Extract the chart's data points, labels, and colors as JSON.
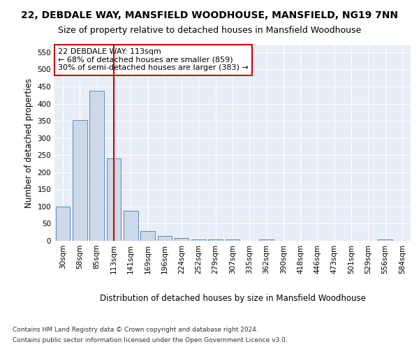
{
  "title": "22, DEBDALE WAY, MANSFIELD WOODHOUSE, MANSFIELD, NG19 7NN",
  "subtitle": "Size of property relative to detached houses in Mansfield Woodhouse",
  "xlabel": "Distribution of detached houses by size in Mansfield Woodhouse",
  "ylabel": "Number of detached properties",
  "footnote1": "Contains HM Land Registry data © Crown copyright and database right 2024.",
  "footnote2": "Contains public sector information licensed under the Open Government Licence v3.0.",
  "annotation_line1": "22 DEBDALE WAY: 113sqm",
  "annotation_line2": "← 68% of detached houses are smaller (859)",
  "annotation_line3": "30% of semi-detached houses are larger (383) →",
  "bar_color": "#cdd9e8",
  "bar_edge_color": "#5b8db8",
  "marker_line_color": "#cc0000",
  "categories": [
    "30sqm",
    "58sqm",
    "85sqm",
    "113sqm",
    "141sqm",
    "169sqm",
    "196sqm",
    "224sqm",
    "252sqm",
    "279sqm",
    "307sqm",
    "335sqm",
    "362sqm",
    "390sqm",
    "418sqm",
    "446sqm",
    "473sqm",
    "501sqm",
    "529sqm",
    "556sqm",
    "584sqm"
  ],
  "values": [
    100,
    353,
    438,
    240,
    87,
    29,
    14,
    9,
    5,
    5,
    5,
    0,
    5,
    0,
    0,
    0,
    0,
    0,
    0,
    5,
    0
  ],
  "ylim": [
    0,
    570
  ],
  "yticks": [
    0,
    50,
    100,
    150,
    200,
    250,
    300,
    350,
    400,
    450,
    500,
    550
  ],
  "plot_bg_color": "#e8eef8",
  "title_fontsize": 10,
  "subtitle_fontsize": 9,
  "axis_label_fontsize": 8.5,
  "tick_fontsize": 7.5,
  "annotation_fontsize": 8,
  "footnote_fontsize": 6.5
}
